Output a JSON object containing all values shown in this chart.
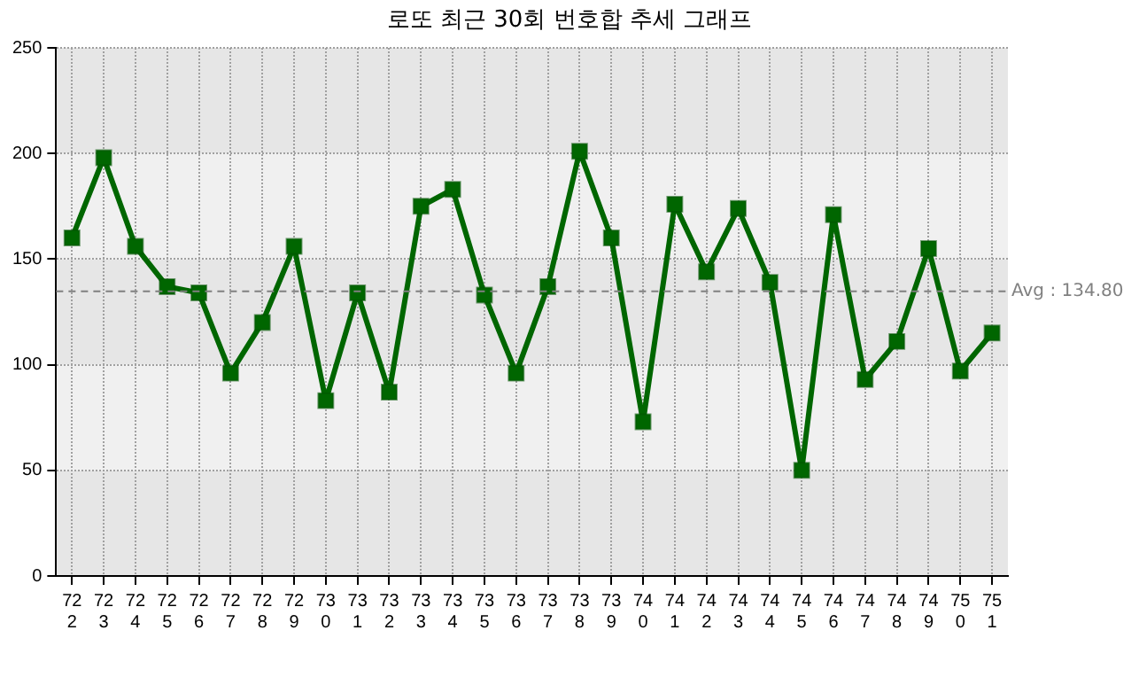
{
  "chart_data": {
    "type": "line",
    "title": "로또 최근 30회 번호합 추세 그래프",
    "categories": [
      "722",
      "723",
      "724",
      "725",
      "726",
      "727",
      "728",
      "729",
      "730",
      "731",
      "732",
      "733",
      "734",
      "735",
      "736",
      "737",
      "738",
      "739",
      "740",
      "741",
      "742",
      "743",
      "744",
      "745",
      "746",
      "747",
      "748",
      "749",
      "750",
      "751"
    ],
    "series": [
      {
        "color": "#006600",
        "values": [
          160,
          198,
          156,
          137,
          134,
          96,
          120,
          156,
          83,
          134,
          87,
          175,
          183,
          133,
          96,
          137,
          201,
          160,
          73,
          176,
          144,
          174,
          139,
          50,
          171,
          93,
          111,
          155,
          97,
          115
        ]
      }
    ],
    "ylim": [
      0,
      250
    ],
    "yticks": [
      0,
      50,
      100,
      150,
      200,
      250
    ],
    "grid": true,
    "legend": false,
    "marker": "square",
    "line_style": "solid",
    "ref_lines": [
      {
        "axis": "y",
        "value": 134.8,
        "label": "Avg : 134.80",
        "color": "#808080",
        "line_style": "dashed"
      }
    ]
  }
}
